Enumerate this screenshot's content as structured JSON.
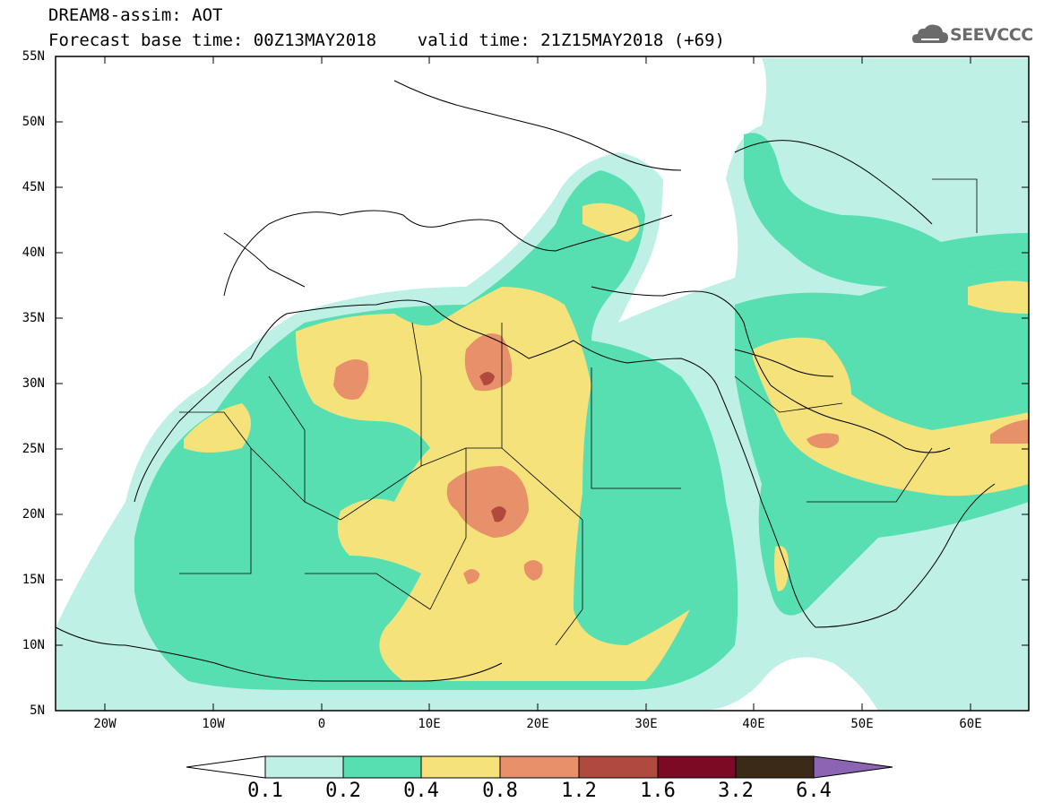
{
  "header": {
    "title_line1": "DREAM8-assim: AOT",
    "title_line2": "Forecast base time: 00Z13MAY2018    valid time: 21Z15MAY2018 (+69)"
  },
  "logo": {
    "text": "SEEVCCC",
    "icon": "cloud-icon",
    "color": "#6b6b6b"
  },
  "map": {
    "lat_labels": [
      "55N",
      "50N",
      "45N",
      "40N",
      "35N",
      "30N",
      "25N",
      "20N",
      "15N",
      "10N",
      "5N"
    ],
    "lon_labels": [
      "20W",
      "10W",
      "0",
      "10E",
      "20E",
      "30E",
      "40E",
      "50E",
      "60E"
    ],
    "lon_range": [
      -25,
      65
    ],
    "lat_range": [
      5,
      55
    ]
  },
  "colorbar": {
    "levels": [
      "0.1",
      "0.2",
      "0.4",
      "0.8",
      "1.2",
      "1.6",
      "3.2",
      "6.4"
    ],
    "colors": [
      "#ffffff",
      "#bff0e6",
      "#57dfb2",
      "#f5e27a",
      "#e8906a",
      "#b04a3e",
      "#7d0a24",
      "#3b2a17",
      "#8c64b4"
    ]
  }
}
